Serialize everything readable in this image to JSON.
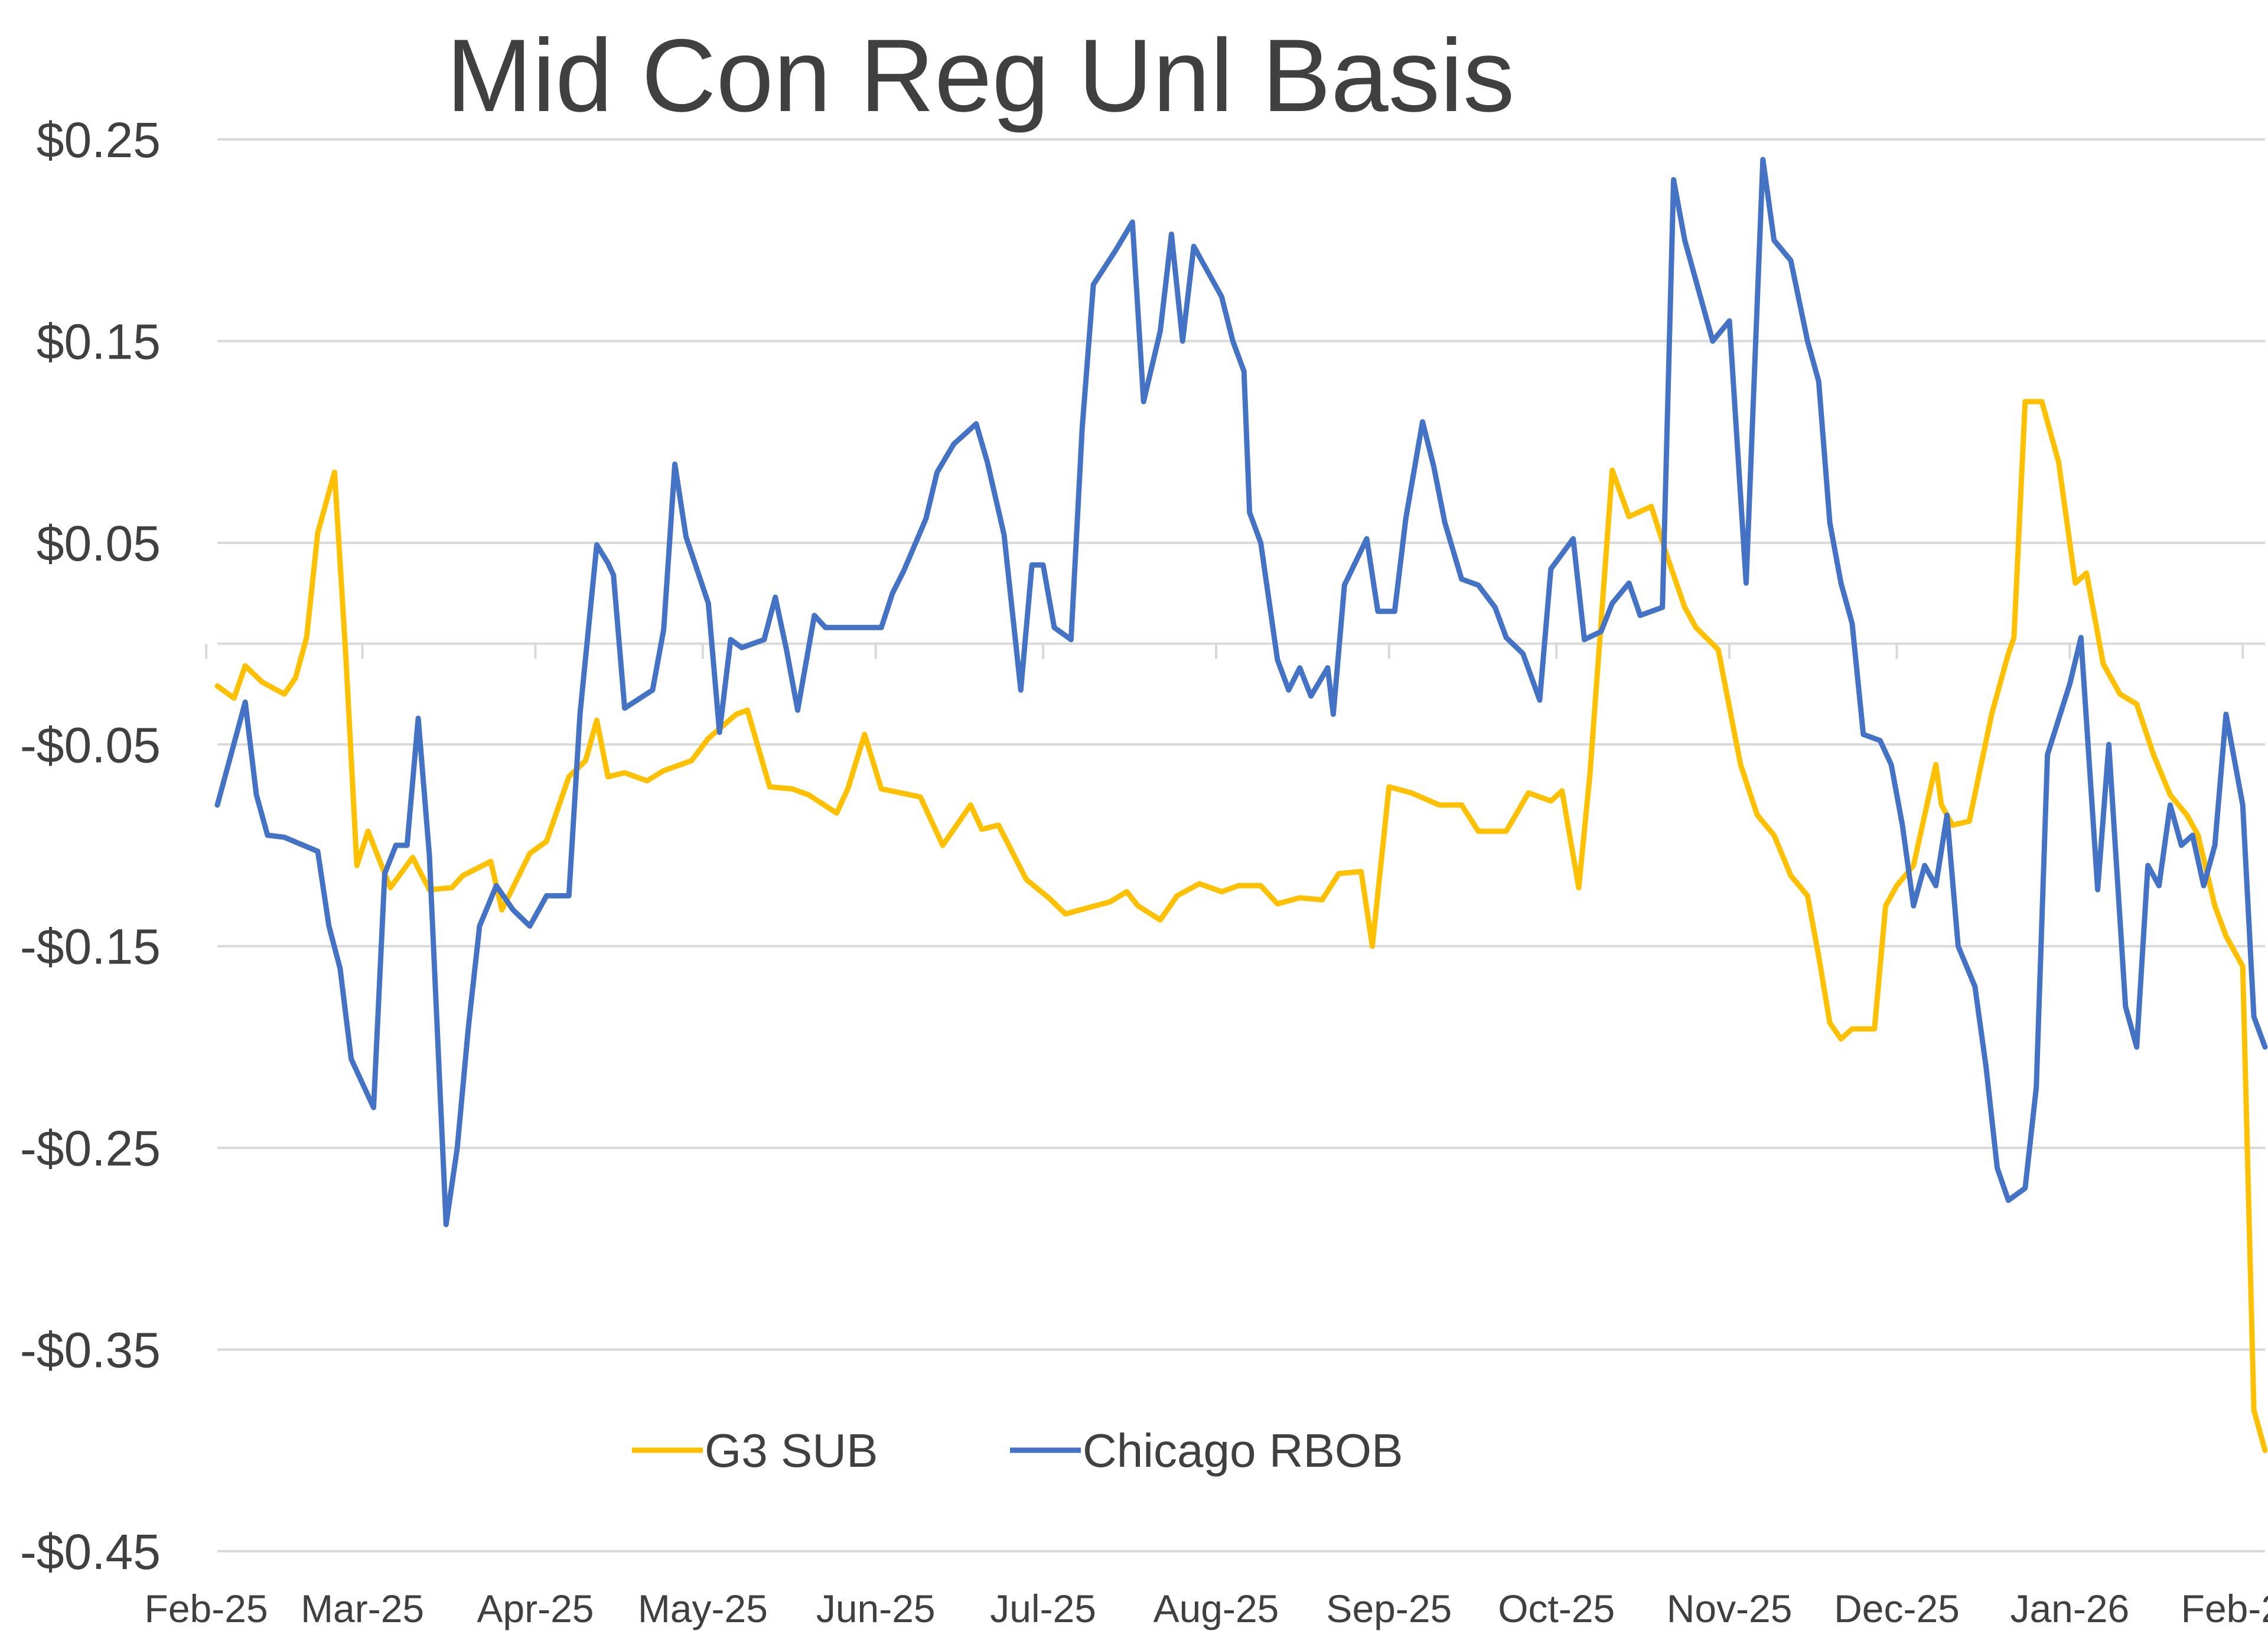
{
  "chart_data": {
    "type": "line",
    "title": "Mid Con Reg Unl Basis",
    "xlabel": "",
    "ylabel": "",
    "ylim": [
      -0.45,
      0.25
    ],
    "y_ticks": [
      0.25,
      0.15,
      0.05,
      -0.05,
      -0.15,
      -0.25,
      -0.35,
      -0.45
    ],
    "y_tick_labels": [
      "$0.25",
      "$0.15",
      "$0.05",
      "-$0.05",
      "-$0.15",
      "-$0.25",
      "-$0.35",
      "-$0.45"
    ],
    "x_range": [
      "2025-02-03",
      "2026-02-05"
    ],
    "x_ticks": [
      "2025-02-01",
      "2025-03-01",
      "2025-04-01",
      "2025-05-01",
      "2025-06-01",
      "2025-07-01",
      "2025-08-01",
      "2025-09-01",
      "2025-10-01",
      "2025-11-01",
      "2025-12-01",
      "2026-01-01",
      "2026-02-01"
    ],
    "x_tick_labels": [
      "Feb-25",
      "Mar-25",
      "Apr-25",
      "May-25",
      "Jun-25",
      "Jul-25",
      "Aug-25",
      "Sep-25",
      "Oct-25",
      "Nov-25",
      "Dec-25",
      "Jan-26",
      "Feb-26"
    ],
    "grid": "horizontal",
    "legend_position": "bottom-center",
    "series": [
      {
        "name": "G3 SUB",
        "color": "#FFC000",
        "points": [
          [
            "2025-02-03",
            -0.021
          ],
          [
            "2025-02-06",
            -0.027
          ],
          [
            "2025-02-08",
            -0.011
          ],
          [
            "2025-02-11",
            -0.019
          ],
          [
            "2025-02-15",
            -0.025
          ],
          [
            "2025-02-17",
            -0.017
          ],
          [
            "2025-02-19",
            0.003
          ],
          [
            "2025-02-21",
            0.055
          ],
          [
            "2025-02-24",
            0.085
          ],
          [
            "2025-02-26",
            -0.005
          ],
          [
            "2025-02-28",
            -0.11
          ],
          [
            "2025-03-02",
            -0.093
          ],
          [
            "2025-03-06",
            -0.121
          ],
          [
            "2025-03-10",
            -0.106
          ],
          [
            "2025-03-13",
            -0.122
          ],
          [
            "2025-03-17",
            -0.121
          ],
          [
            "2025-03-19",
            -0.115
          ],
          [
            "2025-03-24",
            -0.108
          ],
          [
            "2025-03-26",
            -0.132
          ],
          [
            "2025-03-31",
            -0.104
          ],
          [
            "2025-04-03",
            -0.098
          ],
          [
            "2025-04-07",
            -0.066
          ],
          [
            "2025-04-10",
            -0.058
          ],
          [
            "2025-04-12",
            -0.038
          ],
          [
            "2025-04-14",
            -0.066
          ],
          [
            "2025-04-17",
            -0.064
          ],
          [
            "2025-04-21",
            -0.068
          ],
          [
            "2025-04-24",
            -0.063
          ],
          [
            "2025-04-29",
            -0.058
          ],
          [
            "2025-05-02",
            -0.047
          ],
          [
            "2025-05-07",
            -0.035
          ],
          [
            "2025-05-09",
            -0.033
          ],
          [
            "2025-05-11",
            -0.052
          ],
          [
            "2025-05-13",
            -0.071
          ],
          [
            "2025-05-17",
            -0.072
          ],
          [
            "2025-05-20",
            -0.075
          ],
          [
            "2025-05-25",
            -0.084
          ],
          [
            "2025-05-27",
            -0.072
          ],
          [
            "2025-05-30",
            -0.045
          ],
          [
            "2025-06-02",
            -0.072
          ],
          [
            "2025-06-09",
            -0.076
          ],
          [
            "2025-06-13",
            -0.1
          ],
          [
            "2025-06-18",
            -0.08
          ],
          [
            "2025-06-20",
            -0.092
          ],
          [
            "2025-06-23",
            -0.09
          ],
          [
            "2025-06-28",
            -0.117
          ],
          [
            "2025-07-02",
            -0.126
          ],
          [
            "2025-07-05",
            -0.134
          ],
          [
            "2025-07-09",
            -0.131
          ],
          [
            "2025-07-13",
            -0.128
          ],
          [
            "2025-07-16",
            -0.123
          ],
          [
            "2025-07-18",
            -0.13
          ],
          [
            "2025-07-22",
            -0.137
          ],
          [
            "2025-07-25",
            -0.125
          ],
          [
            "2025-07-29",
            -0.119
          ],
          [
            "2025-08-02",
            -0.123
          ],
          [
            "2025-08-05",
            -0.12
          ],
          [
            "2025-08-09",
            -0.12
          ],
          [
            "2025-08-12",
            -0.129
          ],
          [
            "2025-08-16",
            -0.126
          ],
          [
            "2025-08-20",
            -0.127
          ],
          [
            "2025-08-23",
            -0.114
          ],
          [
            "2025-08-27",
            -0.113
          ],
          [
            "2025-08-29",
            -0.15
          ],
          [
            "2025-09-01",
            -0.071
          ],
          [
            "2025-09-05",
            -0.074
          ],
          [
            "2025-09-10",
            -0.08
          ],
          [
            "2025-09-14",
            -0.08
          ],
          [
            "2025-09-17",
            -0.093
          ],
          [
            "2025-09-22",
            -0.093
          ],
          [
            "2025-09-26",
            -0.074
          ],
          [
            "2025-09-30",
            -0.078
          ],
          [
            "2025-10-02",
            -0.073
          ],
          [
            "2025-10-05",
            -0.121
          ],
          [
            "2025-10-07",
            -0.065
          ],
          [
            "2025-10-11",
            0.086
          ],
          [
            "2025-10-14",
            0.063
          ],
          [
            "2025-10-18",
            0.068
          ],
          [
            "2025-10-21",
            0.042
          ],
          [
            "2025-10-24",
            0.018
          ],
          [
            "2025-10-26",
            0.008
          ],
          [
            "2025-10-30",
            -0.003
          ],
          [
            "2025-11-03",
            -0.06
          ],
          [
            "2025-11-06",
            -0.085
          ],
          [
            "2025-11-09",
            -0.095
          ],
          [
            "2025-11-12",
            -0.115
          ],
          [
            "2025-11-15",
            -0.125
          ],
          [
            "2025-11-17",
            -0.155
          ],
          [
            "2025-11-19",
            -0.188
          ],
          [
            "2025-11-21",
            -0.196
          ],
          [
            "2025-11-23",
            -0.191
          ],
          [
            "2025-11-27",
            -0.191
          ],
          [
            "2025-11-29",
            -0.13
          ],
          [
            "2025-12-01",
            -0.12
          ],
          [
            "2025-12-04",
            -0.11
          ],
          [
            "2025-12-08",
            -0.06
          ],
          [
            "2025-12-09",
            -0.08
          ],
          [
            "2025-12-11",
            -0.09
          ],
          [
            "2025-12-14",
            -0.088
          ],
          [
            "2025-12-18",
            -0.035
          ],
          [
            "2025-12-21",
            -0.005
          ],
          [
            "2025-12-22",
            0.003
          ],
          [
            "2025-12-24",
            0.12
          ],
          [
            "2025-12-27",
            0.12
          ],
          [
            "2025-12-30",
            0.09
          ],
          [
            "2026-01-02",
            0.03
          ],
          [
            "2026-01-04",
            0.035
          ],
          [
            "2026-01-07",
            -0.01
          ],
          [
            "2026-01-10",
            -0.025
          ],
          [
            "2026-01-13",
            -0.03
          ],
          [
            "2026-01-16",
            -0.055
          ],
          [
            "2026-01-19",
            -0.075
          ],
          [
            "2026-01-22",
            -0.085
          ],
          [
            "2026-01-24",
            -0.095
          ],
          [
            "2026-01-27",
            -0.13
          ],
          [
            "2026-01-29",
            -0.145
          ],
          [
            "2026-02-01",
            -0.16
          ],
          [
            "2026-02-03",
            -0.38
          ],
          [
            "2026-02-05",
            -0.4
          ]
        ]
      },
      {
        "name": "Chicago RBOB",
        "color": "#4472C4",
        "points": [
          [
            "2025-02-03",
            -0.08
          ],
          [
            "2025-02-08",
            -0.029
          ],
          [
            "2025-02-10",
            -0.075
          ],
          [
            "2025-02-12",
            -0.095
          ],
          [
            "2025-02-15",
            -0.096
          ],
          [
            "2025-02-21",
            -0.103
          ],
          [
            "2025-02-23",
            -0.14
          ],
          [
            "2025-02-25",
            -0.161
          ],
          [
            "2025-02-27",
            -0.206
          ],
          [
            "2025-03-03",
            -0.23
          ],
          [
            "2025-03-05",
            -0.114
          ],
          [
            "2025-03-07",
            -0.1
          ],
          [
            "2025-03-09",
            -0.1
          ],
          [
            "2025-03-11",
            -0.037
          ],
          [
            "2025-03-13",
            -0.105
          ],
          [
            "2025-03-16",
            -0.288
          ],
          [
            "2025-03-18",
            -0.25
          ],
          [
            "2025-03-20",
            -0.19
          ],
          [
            "2025-03-22",
            -0.14
          ],
          [
            "2025-03-25",
            -0.12
          ],
          [
            "2025-03-28",
            -0.132
          ],
          [
            "2025-03-31",
            -0.14
          ],
          [
            "2025-04-03",
            -0.125
          ],
          [
            "2025-04-07",
            -0.125
          ],
          [
            "2025-04-09",
            -0.035
          ],
          [
            "2025-04-12",
            0.049
          ],
          [
            "2025-04-14",
            0.04
          ],
          [
            "2025-04-15",
            0.034
          ],
          [
            "2025-04-17",
            -0.032
          ],
          [
            "2025-04-22",
            -0.023
          ],
          [
            "2025-04-24",
            0.007
          ],
          [
            "2025-04-26",
            0.089
          ],
          [
            "2025-04-28",
            0.053
          ],
          [
            "2025-05-02",
            0.02
          ],
          [
            "2025-05-04",
            -0.044
          ],
          [
            "2025-05-06",
            0.002
          ],
          [
            "2025-05-08",
            -0.002
          ],
          [
            "2025-05-12",
            0.002
          ],
          [
            "2025-05-14",
            0.023
          ],
          [
            "2025-05-16",
            -0.003
          ],
          [
            "2025-05-18",
            -0.033
          ],
          [
            "2025-05-21",
            0.014
          ],
          [
            "2025-05-23",
            0.008
          ],
          [
            "2025-06-02",
            0.008
          ],
          [
            "2025-06-04",
            0.025
          ],
          [
            "2025-06-06",
            0.036
          ],
          [
            "2025-06-10",
            0.062
          ],
          [
            "2025-06-12",
            0.085
          ],
          [
            "2025-06-15",
            0.099
          ],
          [
            "2025-06-19",
            0.109
          ],
          [
            "2025-06-21",
            0.09
          ],
          [
            "2025-06-24",
            0.054
          ],
          [
            "2025-06-27",
            -0.023
          ],
          [
            "2025-06-29",
            0.039
          ],
          [
            "2025-07-01",
            0.039
          ],
          [
            "2025-07-03",
            0.008
          ],
          [
            "2025-07-06",
            0.002
          ],
          [
            "2025-07-08",
            0.107
          ],
          [
            "2025-07-10",
            0.178
          ],
          [
            "2025-07-14",
            0.195
          ],
          [
            "2025-07-17",
            0.209
          ],
          [
            "2025-07-19",
            0.12
          ],
          [
            "2025-07-22",
            0.155
          ],
          [
            "2025-07-24",
            0.203
          ],
          [
            "2025-07-26",
            0.15
          ],
          [
            "2025-07-28",
            0.197
          ],
          [
            "2025-08-02",
            0.172
          ],
          [
            "2025-08-04",
            0.15
          ],
          [
            "2025-08-06",
            0.135
          ],
          [
            "2025-08-07",
            0.065
          ],
          [
            "2025-08-09",
            0.05
          ],
          [
            "2025-08-12",
            -0.008
          ],
          [
            "2025-08-14",
            -0.023
          ],
          [
            "2025-08-16",
            -0.012
          ],
          [
            "2025-08-18",
            -0.026
          ],
          [
            "2025-08-21",
            -0.012
          ],
          [
            "2025-08-22",
            -0.035
          ],
          [
            "2025-08-24",
            0.029
          ],
          [
            "2025-08-28",
            0.052
          ],
          [
            "2025-08-30",
            0.016
          ],
          [
            "2025-09-02",
            0.016
          ],
          [
            "2025-09-04",
            0.062
          ],
          [
            "2025-09-07",
            0.11
          ],
          [
            "2025-09-09",
            0.088
          ],
          [
            "2025-09-11",
            0.06
          ],
          [
            "2025-09-14",
            0.032
          ],
          [
            "2025-09-17",
            0.029
          ],
          [
            "2025-09-20",
            0.018
          ],
          [
            "2025-09-22",
            0.003
          ],
          [
            "2025-09-25",
            -0.005
          ],
          [
            "2025-09-28",
            -0.028
          ],
          [
            "2025-09-30",
            0.037
          ],
          [
            "2025-10-04",
            0.052
          ],
          [
            "2025-10-06",
            0.002
          ],
          [
            "2025-10-09",
            0.006
          ],
          [
            "2025-10-11",
            0.02
          ],
          [
            "2025-10-14",
            0.03
          ],
          [
            "2025-10-16",
            0.014
          ],
          [
            "2025-10-20",
            0.018
          ],
          [
            "2025-10-22",
            0.23
          ],
          [
            "2025-10-24",
            0.2
          ],
          [
            "2025-10-29",
            0.15
          ],
          [
            "2025-11-01",
            0.16
          ],
          [
            "2025-11-04",
            0.03
          ],
          [
            "2025-11-07",
            0.24
          ],
          [
            "2025-11-09",
            0.2
          ],
          [
            "2025-11-12",
            0.19
          ],
          [
            "2025-11-15",
            0.15
          ],
          [
            "2025-11-17",
            0.13
          ],
          [
            "2025-11-19",
            0.06
          ],
          [
            "2025-11-21",
            0.03
          ],
          [
            "2025-11-23",
            0.01
          ],
          [
            "2025-11-25",
            -0.045
          ],
          [
            "2025-11-28",
            -0.048
          ],
          [
            "2025-11-30",
            -0.06
          ],
          [
            "2025-12-02",
            -0.09
          ],
          [
            "2025-12-04",
            -0.13
          ],
          [
            "2025-12-06",
            -0.11
          ],
          [
            "2025-12-08",
            -0.12
          ],
          [
            "2025-12-10",
            -0.085
          ],
          [
            "2025-12-12",
            -0.15
          ],
          [
            "2025-12-15",
            -0.17
          ],
          [
            "2025-12-17",
            -0.21
          ],
          [
            "2025-12-19",
            -0.26
          ],
          [
            "2025-12-21",
            -0.276
          ],
          [
            "2025-12-24",
            -0.27
          ],
          [
            "2025-12-26",
            -0.22
          ],
          [
            "2025-12-28",
            -0.055
          ],
          [
            "2026-01-01",
            -0.02
          ],
          [
            "2026-01-03",
            0.003
          ],
          [
            "2026-01-06",
            -0.122
          ],
          [
            "2026-01-08",
            -0.05
          ],
          [
            "2026-01-11",
            -0.18
          ],
          [
            "2026-01-13",
            -0.2
          ],
          [
            "2026-01-15",
            -0.11
          ],
          [
            "2026-01-17",
            -0.12
          ],
          [
            "2026-01-19",
            -0.08
          ],
          [
            "2026-01-21",
            -0.1
          ],
          [
            "2026-01-23",
            -0.095
          ],
          [
            "2026-01-25",
            -0.12
          ],
          [
            "2026-01-27",
            -0.1
          ],
          [
            "2026-01-29",
            -0.035
          ],
          [
            "2026-02-01",
            -0.08
          ],
          [
            "2026-02-03",
            -0.185
          ],
          [
            "2026-02-05",
            -0.2
          ]
        ]
      }
    ]
  }
}
